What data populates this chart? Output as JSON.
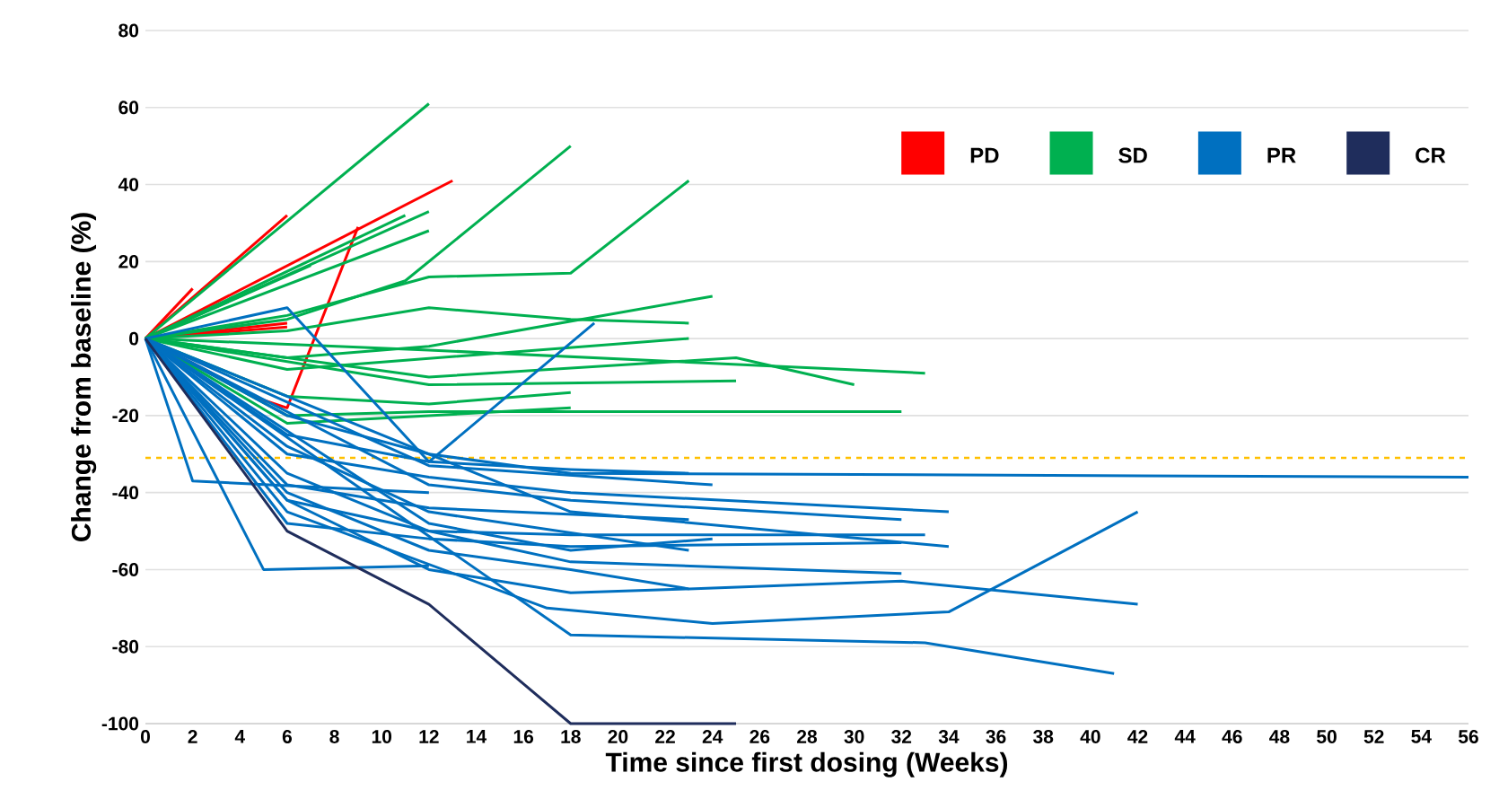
{
  "chart_data": {
    "type": "line",
    "xlabel": "Time since first dosing (Weeks)",
    "ylabel": "Change from baseline (%)",
    "xlim": [
      0,
      56
    ],
    "ylim": [
      -100,
      80
    ],
    "xticks": [
      0,
      2,
      4,
      6,
      8,
      10,
      12,
      14,
      16,
      18,
      20,
      22,
      24,
      26,
      28,
      30,
      32,
      34,
      36,
      38,
      40,
      42,
      44,
      46,
      48,
      50,
      52,
      54,
      56
    ],
    "yticks": [
      -100,
      -80,
      -60,
      -40,
      -20,
      0,
      20,
      40,
      60,
      80
    ],
    "grid": "y",
    "legend": "top right",
    "marker": "none",
    "line_style": "solid",
    "ref_lines": [
      {
        "axis": "y",
        "value": -31,
        "color": "#ffc000",
        "line_style": "dashed"
      }
    ],
    "series": [
      {
        "name": "PD",
        "color": "#ff0000",
        "x": [
          0,
          2
        ],
        "values": [
          0,
          13
        ]
      },
      {
        "color": "#ff0000",
        "x": [
          0,
          6
        ],
        "values": [
          0,
          32
        ]
      },
      {
        "color": "#ff0000",
        "x": [
          0,
          13
        ],
        "values": [
          0,
          41
        ]
      },
      {
        "color": "#ff0000",
        "x": [
          0,
          5,
          6,
          9
        ],
        "values": [
          0,
          -16,
          -18,
          29
        ]
      },
      {
        "color": "#ff0000",
        "x": [
          0,
          6
        ],
        "values": [
          0,
          4
        ]
      },
      {
        "color": "#ff0000",
        "x": [
          0,
          6
        ],
        "values": [
          0,
          3
        ]
      },
      {
        "name": "SD",
        "color": "#00b050",
        "x": [
          0,
          12
        ],
        "values": [
          0,
          61
        ]
      },
      {
        "color": "#00b050",
        "x": [
          0,
          6,
          11,
          18
        ],
        "values": [
          0,
          5,
          15,
          50
        ]
      },
      {
        "color": "#00b050",
        "x": [
          0,
          6,
          12,
          18,
          23
        ],
        "values": [
          0,
          6,
          16,
          17,
          41
        ]
      },
      {
        "color": "#00b050",
        "x": [
          0,
          12
        ],
        "values": [
          0,
          33
        ]
      },
      {
        "color": "#00b050",
        "x": [
          0,
          12
        ],
        "values": [
          0,
          28
        ]
      },
      {
        "color": "#00b050",
        "x": [
          0,
          11
        ],
        "values": [
          0,
          32
        ]
      },
      {
        "color": "#00b050",
        "x": [
          0,
          7
        ],
        "values": [
          0,
          19
        ]
      },
      {
        "color": "#00b050",
        "x": [
          0,
          6,
          12,
          18,
          23
        ],
        "values": [
          0,
          2,
          8,
          5,
          4
        ]
      },
      {
        "color": "#00b050",
        "x": [
          0,
          6,
          12,
          24
        ],
        "values": [
          0,
          -5,
          -2,
          11
        ]
      },
      {
        "color": "#00b050",
        "x": [
          0,
          12,
          25,
          30
        ],
        "values": [
          0,
          -10,
          -5,
          -12
        ]
      },
      {
        "color": "#00b050",
        "x": [
          0,
          12,
          33
        ],
        "values": [
          0,
          -3,
          -9
        ]
      },
      {
        "color": "#00b050",
        "x": [
          0,
          12,
          25
        ],
        "values": [
          0,
          -12,
          -11
        ]
      },
      {
        "color": "#00b050",
        "x": [
          0,
          6,
          12,
          32
        ],
        "values": [
          0,
          -20,
          -19,
          -19
        ]
      },
      {
        "color": "#00b050",
        "x": [
          0,
          6,
          23
        ],
        "values": [
          0,
          -8,
          0
        ]
      },
      {
        "color": "#00b050",
        "x": [
          0,
          6,
          12,
          18
        ],
        "values": [
          0,
          -15,
          -17,
          -14
        ]
      },
      {
        "color": "#00b050",
        "x": [
          0,
          6,
          12,
          18
        ],
        "values": [
          0,
          -22,
          -20,
          -18
        ]
      },
      {
        "name": "PR",
        "color": "#0070c0",
        "x": [
          0,
          6,
          12,
          18,
          56
        ],
        "values": [
          0,
          -20,
          -30,
          -35,
          -36
        ]
      },
      {
        "color": "#0070c0",
        "x": [
          0,
          6,
          12,
          19
        ],
        "values": [
          0,
          8,
          -32,
          4
        ]
      },
      {
        "color": "#0070c0",
        "x": [
          0,
          2,
          12
        ],
        "values": [
          0,
          -37,
          -40
        ]
      },
      {
        "color": "#0070c0",
        "x": [
          0,
          5,
          12
        ],
        "values": [
          0,
          -60,
          -59
        ]
      },
      {
        "color": "#0070c0",
        "x": [
          0,
          18,
          33,
          41
        ],
        "values": [
          0,
          -77,
          -79,
          -87
        ]
      },
      {
        "color": "#0070c0",
        "x": [
          0,
          6,
          17,
          24,
          34,
          42
        ],
        "values": [
          0,
          -45,
          -70,
          -74,
          -71,
          -45
        ]
      },
      {
        "color": "#0070c0",
        "x": [
          0,
          6,
          12,
          18,
          23,
          32,
          42
        ],
        "values": [
          0,
          -40,
          -55,
          -60,
          -65,
          -63,
          -69
        ]
      },
      {
        "color": "#0070c0",
        "x": [
          0,
          6,
          12,
          18,
          32
        ],
        "values": [
          0,
          -35,
          -50,
          -58,
          -61
        ]
      },
      {
        "color": "#0070c0",
        "x": [
          0,
          6,
          12,
          18,
          23
        ],
        "values": [
          0,
          -25,
          -32,
          -34,
          -35
        ]
      },
      {
        "color": "#0070c0",
        "x": [
          0,
          12,
          24
        ],
        "values": [
          0,
          -33,
          -38
        ]
      },
      {
        "color": "#0070c0",
        "x": [
          0,
          6,
          12,
          18,
          34
        ],
        "values": [
          0,
          -30,
          -36,
          -40,
          -45
        ]
      },
      {
        "color": "#0070c0",
        "x": [
          0,
          12,
          18,
          32
        ],
        "values": [
          0,
          -38,
          -42,
          -47
        ]
      },
      {
        "color": "#0070c0",
        "x": [
          0,
          6,
          12,
          23
        ],
        "values": [
          0,
          -38,
          -44,
          -47
        ]
      },
      {
        "color": "#0070c0",
        "x": [
          0,
          6,
          12,
          18,
          33
        ],
        "values": [
          0,
          -42,
          -50,
          -51,
          -51
        ]
      },
      {
        "color": "#0070c0",
        "x": [
          0,
          12,
          18,
          24
        ],
        "values": [
          0,
          -48,
          -55,
          -52
        ]
      },
      {
        "color": "#0070c0",
        "x": [
          0,
          6,
          12,
          18,
          32
        ],
        "values": [
          0,
          -48,
          -52,
          -54,
          -53
        ]
      },
      {
        "color": "#0070c0",
        "x": [
          0,
          18,
          34
        ],
        "values": [
          0,
          -45,
          -54
        ]
      },
      {
        "color": "#0070c0",
        "x": [
          0,
          6,
          12,
          23
        ],
        "values": [
          0,
          -28,
          -45,
          -55
        ]
      },
      {
        "color": "#0070c0",
        "x": [
          0,
          6,
          12,
          18,
          23
        ],
        "values": [
          0,
          -42,
          -60,
          -66,
          -65
        ]
      },
      {
        "name": "CR",
        "color": "#1f2d5c",
        "x": [
          0,
          6,
          12,
          18,
          25
        ],
        "values": [
          0,
          -50,
          -69,
          -100,
          -100
        ]
      }
    ]
  }
}
